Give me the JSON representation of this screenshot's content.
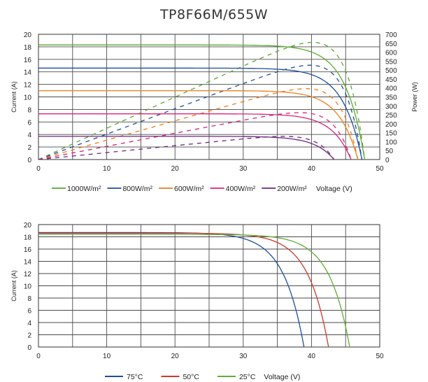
{
  "chart_data": [
    {
      "type": "line",
      "title": "TP8F66M/655W",
      "xlabel": "Voltage (V)",
      "ylabel": "Current (A)",
      "y2label": "Power (W)",
      "xlim": [
        0,
        50
      ],
      "ylim": [
        0,
        20
      ],
      "y2lim": [
        0,
        700
      ],
      "xticks": [
        "0",
        "10",
        "20",
        "30",
        "40",
        "50"
      ],
      "yticks": [
        "0",
        "2",
        "4",
        "6",
        "8",
        "10",
        "12",
        "14",
        "16",
        "18",
        "20"
      ],
      "y2ticks": [
        "0",
        "50",
        "100",
        "150",
        "200",
        "250",
        "300",
        "350",
        "400",
        "450",
        "500",
        "550",
        "600",
        "650",
        "700"
      ],
      "grid": true,
      "legend_position": "bottom",
      "series": [
        {
          "name": "1000W/m²",
          "color": "#5aaa2e",
          "isc": 18.3,
          "voc": 47.8,
          "pmax": 655
        },
        {
          "name": "800W/m²",
          "color": "#1f4e9c",
          "isc": 14.6,
          "voc": 47.4,
          "pmax": 527
        },
        {
          "name": "600W/m²",
          "color": "#ee7d1a",
          "isc": 11.0,
          "voc": 46.8,
          "pmax": 396
        },
        {
          "name": "400W/m²",
          "color": "#d9237a",
          "isc": 7.3,
          "voc": 45.8,
          "pmax": 262
        },
        {
          "name": "200W/m²",
          "color": "#6b2580",
          "isc": 3.7,
          "voc": 43.3,
          "pmax": 129
        }
      ]
    },
    {
      "type": "line",
      "title": "",
      "xlabel": "Voltage (V)",
      "ylabel": "Current (A)",
      "xlim": [
        0,
        50
      ],
      "ylim": [
        0,
        20
      ],
      "xticks": [
        "0",
        "10",
        "20",
        "30",
        "40",
        "50"
      ],
      "yticks": [
        "0",
        "2",
        "4",
        "6",
        "8",
        "10",
        "12",
        "14",
        "16",
        "18",
        "20"
      ],
      "grid": true,
      "legend_position": "bottom",
      "series": [
        {
          "name": "75°C",
          "color": "#1f4e9c",
          "isc": 18.7,
          "voc": 38.9
        },
        {
          "name": "50°C",
          "color": "#cc3a2a",
          "isc": 18.6,
          "voc": 42.5
        },
        {
          "name": "25°C",
          "color": "#62ac36",
          "isc": 18.4,
          "voc": 45.6
        }
      ]
    }
  ]
}
